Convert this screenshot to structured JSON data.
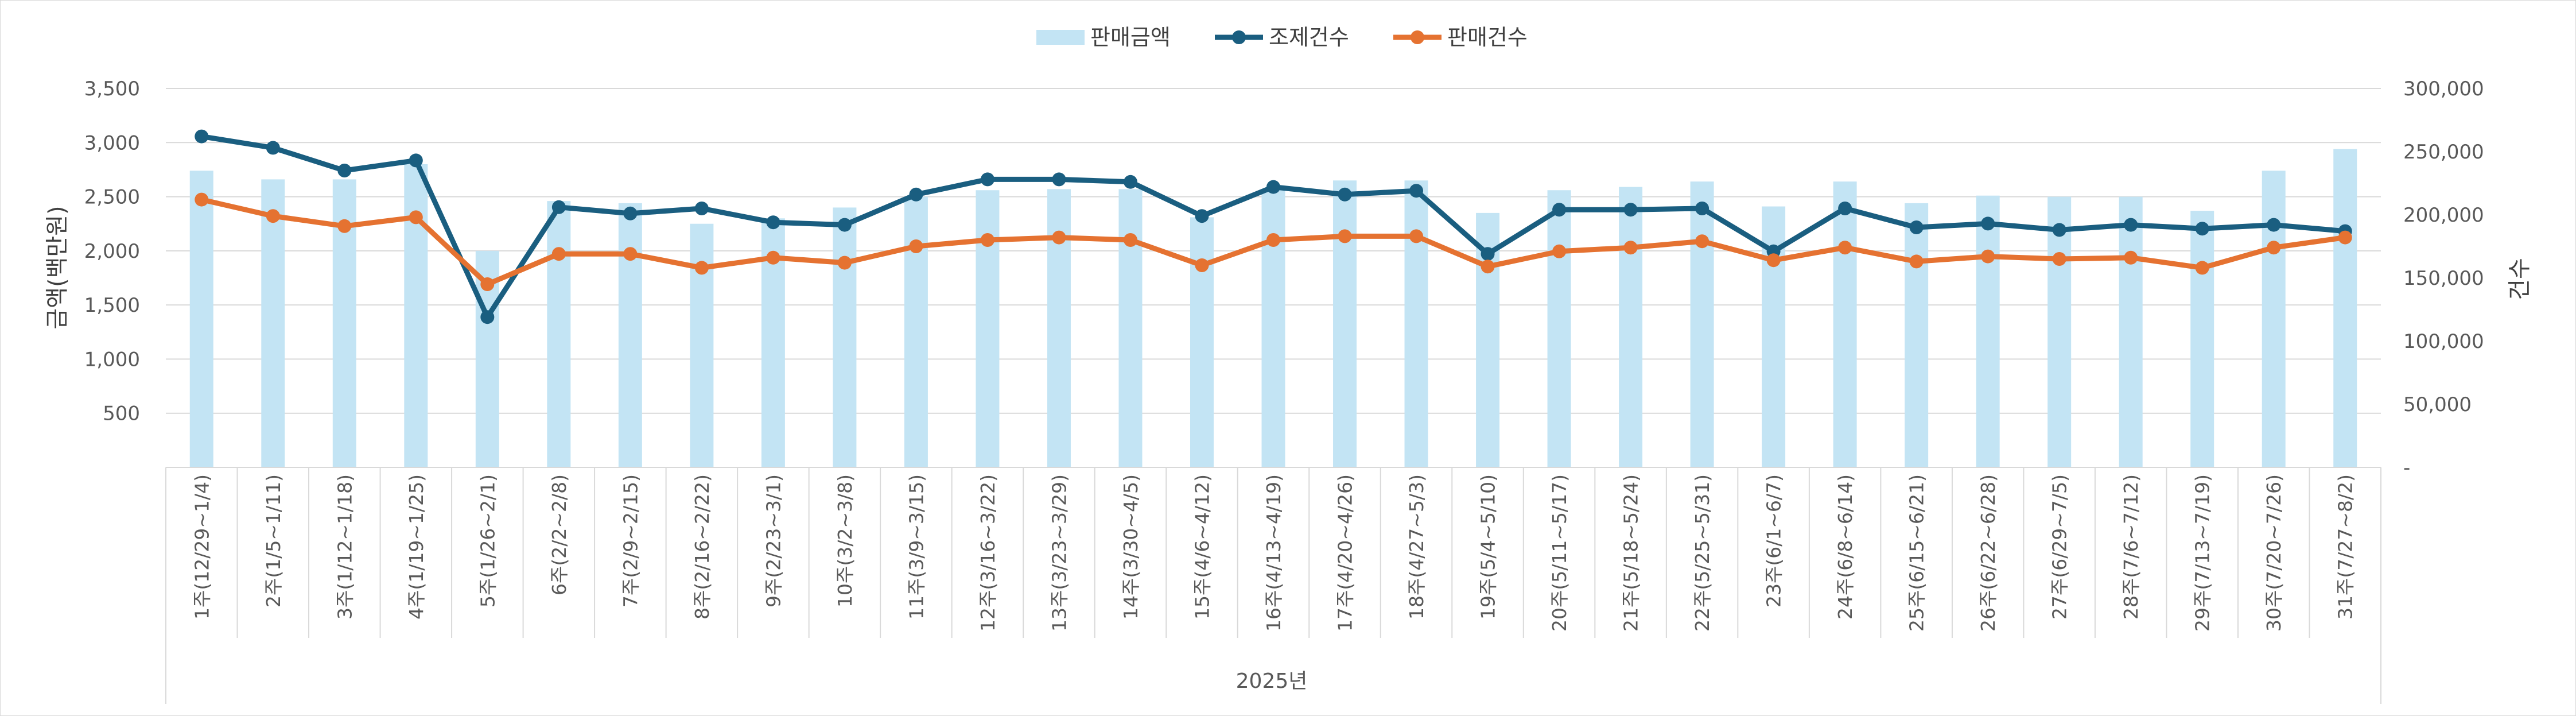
{
  "chart_data": {
    "type": "bar",
    "title": "",
    "categories": [
      "1주(12/29~1/4)",
      "2주(1/5~1/11)",
      "3주(1/12~1/18)",
      "4주(1/19~1/25)",
      "5주(1/26~2/1)",
      "6주(2/2~2/8)",
      "7주(2/9~2/15)",
      "8주(2/16~2/22)",
      "9주(2/23~3/1)",
      "10주(3/2~3/8)",
      "11주(3/9~3/15)",
      "12주(3/16~3/22)",
      "13주(3/23~3/29)",
      "14주(3/30~4/5)",
      "15주(4/6~4/12)",
      "16주(4/13~4/19)",
      "17주(4/20~4/26)",
      "18주(4/27~5/3)",
      "19주(5/4~5/10)",
      "20주(5/11~5/17)",
      "21주(5/18~5/24)",
      "22주(5/25~5/31)",
      "23주(6/1~6/7)",
      "24주(6/8~6/14)",
      "25주(6/15~6/21)",
      "26주(6/22~6/28)",
      "27주(6/29~7/5)",
      "28주(7/6~7/12)",
      "29주(7/13~7/19)",
      "30주(7/20~7/26)",
      "31주(7/27~8/2)"
    ],
    "x_group_label": "2025년",
    "series": [
      {
        "name": "판매금액",
        "type": "bar",
        "axis": "left",
        "color": "#c3e4f4",
        "values": [
          2740,
          2660,
          2660,
          2800,
          2000,
          2460,
          2440,
          2250,
          2300,
          2400,
          2500,
          2560,
          2570,
          2570,
          2310,
          2570,
          2650,
          2650,
          2350,
          2560,
          2590,
          2640,
          2410,
          2640,
          2440,
          2510,
          2500,
          2500,
          2370,
          2740,
          2940
        ]
      },
      {
        "name": "조제건수",
        "type": "line",
        "axis": "right",
        "color": "#1a5e80",
        "values": [
          262000,
          253000,
          235000,
          243000,
          119000,
          206000,
          201000,
          205000,
          194000,
          192000,
          216000,
          228000,
          228000,
          226000,
          199000,
          222000,
          216000,
          219000,
          169000,
          204000,
          204000,
          205000,
          171000,
          205000,
          190000,
          193000,
          188000,
          192000,
          189000,
          192000,
          187000
        ]
      },
      {
        "name": "판매건수",
        "type": "line",
        "axis": "right",
        "color": "#e57231",
        "values": [
          212000,
          199000,
          191000,
          198000,
          145000,
          169000,
          169000,
          158000,
          166000,
          162000,
          175000,
          180000,
          182000,
          180000,
          160000,
          180000,
          183000,
          183000,
          159000,
          171000,
          174000,
          179000,
          164000,
          174000,
          163000,
          167000,
          165000,
          166000,
          158000,
          174000,
          182000
        ]
      }
    ],
    "left_axis": {
      "label": "금액(백만원)",
      "ylim": [
        0,
        3500
      ],
      "ticks": [
        "500",
        "1,000",
        "1,500",
        "2,000",
        "2,500",
        "3,000",
        "3,500"
      ],
      "tick_values": [
        500,
        1000,
        1500,
        2000,
        2500,
        3000,
        3500
      ]
    },
    "right_axis": {
      "label": "건수",
      "ylim": [
        0,
        300000
      ],
      "ticks": [
        "-",
        "50,000",
        "100,000",
        "150,000",
        "200,000",
        "250,000",
        "300,000"
      ],
      "tick_values": [
        0,
        50000,
        100000,
        150000,
        200000,
        250000,
        300000
      ]
    },
    "grid": true,
    "legend_position": "top-center"
  }
}
